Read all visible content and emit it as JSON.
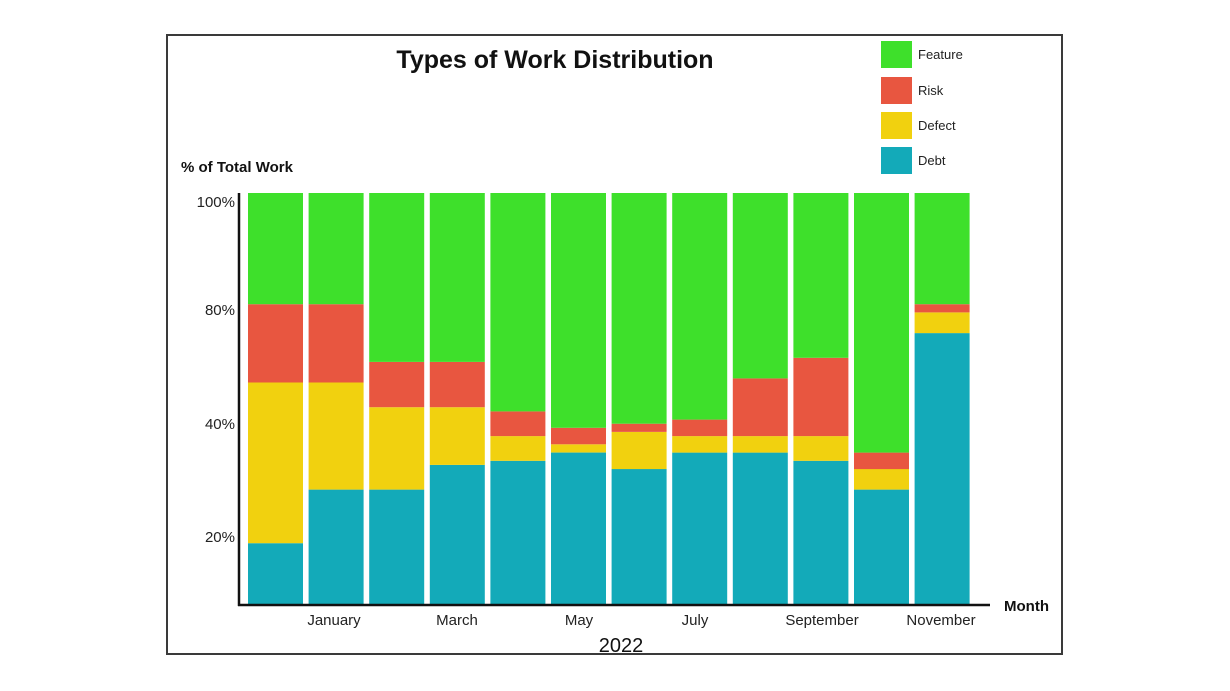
{
  "chart_data": {
    "type": "bar",
    "stacked": true,
    "title": "Types of Work Distribution",
    "ylabel": "% of Total Work",
    "xlabel": "Month",
    "year_label": "2022",
    "y_ticks": [
      {
        "label": "100%",
        "value": 100
      },
      {
        "label": "80%",
        "value": 80
      },
      {
        "label": "40%",
        "value": 40
      },
      {
        "label": "20%",
        "value": 20
      }
    ],
    "x_tick_labels": [
      {
        "label": "January",
        "bar_index": 1
      },
      {
        "label": "March",
        "bar_index": 3
      },
      {
        "label": "May",
        "bar_index": 5
      },
      {
        "label": "July",
        "bar_index": 7
      },
      {
        "label": "September",
        "bar_index": 9
      },
      {
        "label": "November",
        "bar_index": 11
      }
    ],
    "bar_count": 12,
    "legend_position": "top-right",
    "grid": false,
    "series": [
      {
        "name": "Debt",
        "color": "#13aab9",
        "values": [
          15,
          28,
          28,
          34,
          35,
          37,
          33,
          37,
          37,
          35,
          28,
          66
        ]
      },
      {
        "name": "Defect",
        "color": "#f1d10f",
        "values": [
          39,
          26,
          20,
          14,
          6,
          2,
          9,
          4,
          4,
          6,
          5,
          5
        ]
      },
      {
        "name": "Risk",
        "color": "#e85640",
        "values": [
          19,
          19,
          11,
          11,
          6,
          4,
          2,
          4,
          14,
          19,
          4,
          2
        ]
      },
      {
        "name": "Feature",
        "color": "#3ee02b",
        "values": [
          27,
          27,
          41,
          41,
          53,
          57,
          56,
          55,
          45,
          40,
          63,
          27
        ]
      }
    ],
    "legend_order": [
      "Feature",
      "Risk",
      "Defect",
      "Debt"
    ]
  }
}
